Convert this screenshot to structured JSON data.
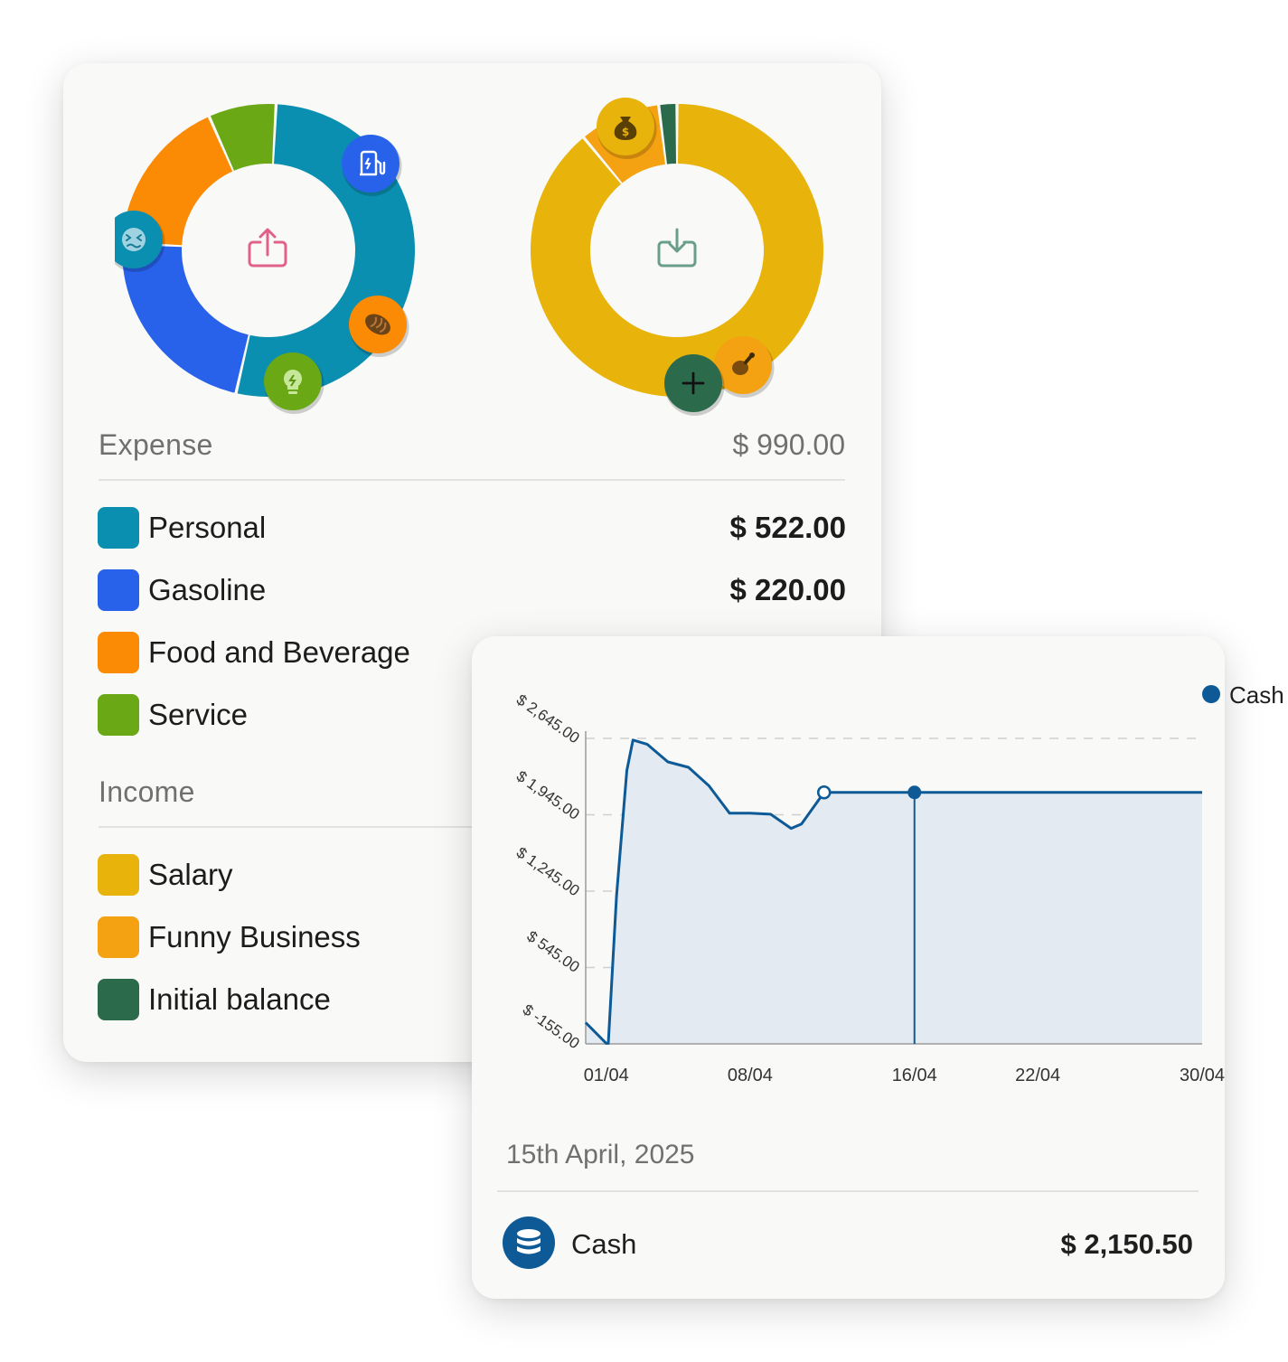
{
  "expense": {
    "title": "Expense",
    "total": "$ 990.00",
    "center_icon": "share-upload-icon",
    "categories": [
      {
        "label": "Personal",
        "amount": "$ 522.00",
        "value": 522,
        "color": "#0b8fb0",
        "icon": "dizzy-face-icon"
      },
      {
        "label": "Gasoline",
        "amount": "$ 220.00",
        "value": 220,
        "color": "#2862ea",
        "icon": "gas-pump-icon"
      },
      {
        "label": "Food and Beverage",
        "amount": "",
        "value": 174,
        "color": "#fb8a04",
        "icon": "bread-icon"
      },
      {
        "label": "Service",
        "amount": "",
        "value": 74,
        "color": "#6aa915",
        "icon": "lightbulb-icon"
      }
    ]
  },
  "income": {
    "title": "Income",
    "center_icon": "download-tray-icon",
    "categories": [
      {
        "label": "Salary",
        "value": 0.89,
        "color": "#e8b30a",
        "icon": "money-bag-icon"
      },
      {
        "label": "Funny Business",
        "value": 0.09,
        "color": "#f4a211",
        "icon": "chicken-leg-icon"
      },
      {
        "label": "Initial balance",
        "value": 0.02,
        "color": "#2c6a4c",
        "icon": "plus-icon"
      }
    ]
  },
  "chart_data": {
    "type": "area",
    "legend": "Cash",
    "legend_position": "top-right",
    "ylim": [
      -155,
      2645
    ],
    "yticks": [
      -155,
      545,
      1245,
      1945,
      2645
    ],
    "ytick_labels": [
      "$ -155.00",
      "$ 545.00",
      "$ 1,245.00",
      "$ 1,945.00",
      "$ 2,645.00"
    ],
    "xlim": [
      0,
      30
    ],
    "xticks": [
      1,
      8,
      16,
      22,
      30
    ],
    "xtick_labels": [
      "01/04",
      "08/04",
      "16/04",
      "22/04",
      "30/04"
    ],
    "grid": "horizontal dashed",
    "series": [
      {
        "name": "Cash",
        "color": "#0e5a96",
        "x": [
          0,
          1,
          1.1,
          1.5,
          2,
          2.3,
          3,
          4,
          5,
          6,
          7,
          8,
          9,
          10,
          10.5,
          11.6,
          12,
          13,
          16,
          22,
          30
        ],
        "y": [
          40,
          -150,
          -150,
          1200,
          2350,
          2630,
          2590,
          2430,
          2380,
          2210,
          1960,
          1960,
          1950,
          1820,
          1860,
          2150,
          2150,
          2150,
          2150,
          2150,
          2150
        ]
      }
    ],
    "highlight": {
      "x": 16,
      "y": 2150
    },
    "hollow_point": {
      "x": 11.6,
      "y": 2150
    }
  },
  "selection": {
    "date": "15th April, 2025",
    "account": "Cash",
    "account_icon": "database-coins-icon",
    "amount": "$ 2,150.50"
  }
}
